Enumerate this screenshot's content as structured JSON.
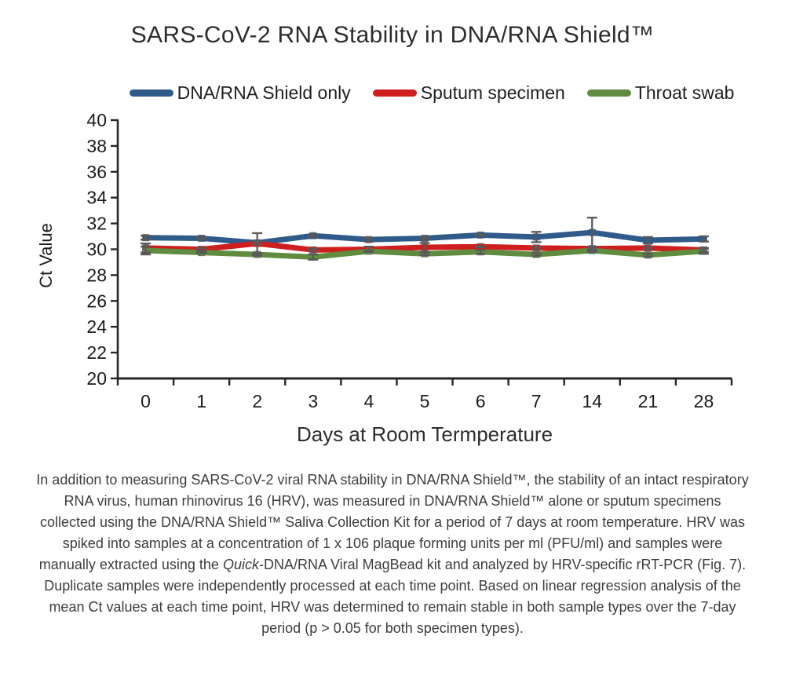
{
  "chart_data": {
    "type": "line",
    "title": "SARS-CoV-2 RNA Stability in DNA/RNA Shield™",
    "xlabel": "Days at Room Termperature",
    "ylabel": "Ct Value",
    "ylim": [
      20,
      40
    ],
    "ytick_step": 2,
    "grid": false,
    "legend_position": "top",
    "categories": [
      "0",
      "1",
      "2",
      "3",
      "4",
      "5",
      "6",
      "7",
      "14",
      "21",
      "28"
    ],
    "series": [
      {
        "name": "DNA/RNA Shield only",
        "color": "#2F5B8B",
        "values": [
          30.9,
          30.85,
          30.5,
          31.05,
          30.75,
          30.85,
          31.1,
          30.95,
          31.3,
          30.7,
          30.8
        ],
        "errors": [
          0.15,
          0.1,
          0.1,
          0.1,
          0.15,
          0.1,
          0.05,
          0.4,
          1.15,
          0.25,
          0.2
        ]
      },
      {
        "name": "Sputum specimen",
        "color": "#CE1E1E",
        "values": [
          30.1,
          30.0,
          30.45,
          29.95,
          30.0,
          30.15,
          30.2,
          30.1,
          30.05,
          30.1,
          29.95
        ],
        "errors": [
          0.35,
          0.1,
          0.8,
          0.1,
          0.2,
          0.35,
          0.05,
          0.1,
          0.15,
          0.1,
          0.15
        ]
      },
      {
        "name": "Throat swab",
        "color": "#5F8C3E",
        "values": [
          29.9,
          29.75,
          29.6,
          29.4,
          29.85,
          29.65,
          29.8,
          29.6,
          29.9,
          29.55,
          29.85
        ],
        "errors": [
          0.3,
          0.05,
          0.1,
          0.2,
          0.05,
          0.1,
          0.15,
          0.1,
          0.1,
          0.1,
          0.2
        ]
      }
    ],
    "axis_color": "#262626",
    "tick_label_color": "#1c1c1c",
    "error_bar_color": "#595959",
    "marker_color": "#6e6e6e"
  },
  "caption": {
    "part1": "In addition to measuring SARS-CoV-2 viral RNA stability in DNA/RNA Shield™, the stability of an intact respiratory RNA virus, human rhinovirus 16 (HRV), was measured in DNA/RNA Shield™ alone or sputum specimens collected using the DNA/RNA Shield™ Saliva Collection Kit for a period of 7 days at room temperature. HRV was spiked into samples at a concentration of 1 x 106 plaque forming units per ml (PFU/ml) and samples were manually extracted using the ",
    "italic": "Quick",
    "part2": "-DNA/RNA Viral MagBead kit and analyzed by HRV-specific rRT-PCR (Fig. 7). Duplicate samples were independently processed at each time point. Based on linear regression analysis of the mean Ct values at each time point, HRV was determined to remain stable in both sample types over the 7-day period (p > 0.05 for both specimen types)."
  }
}
